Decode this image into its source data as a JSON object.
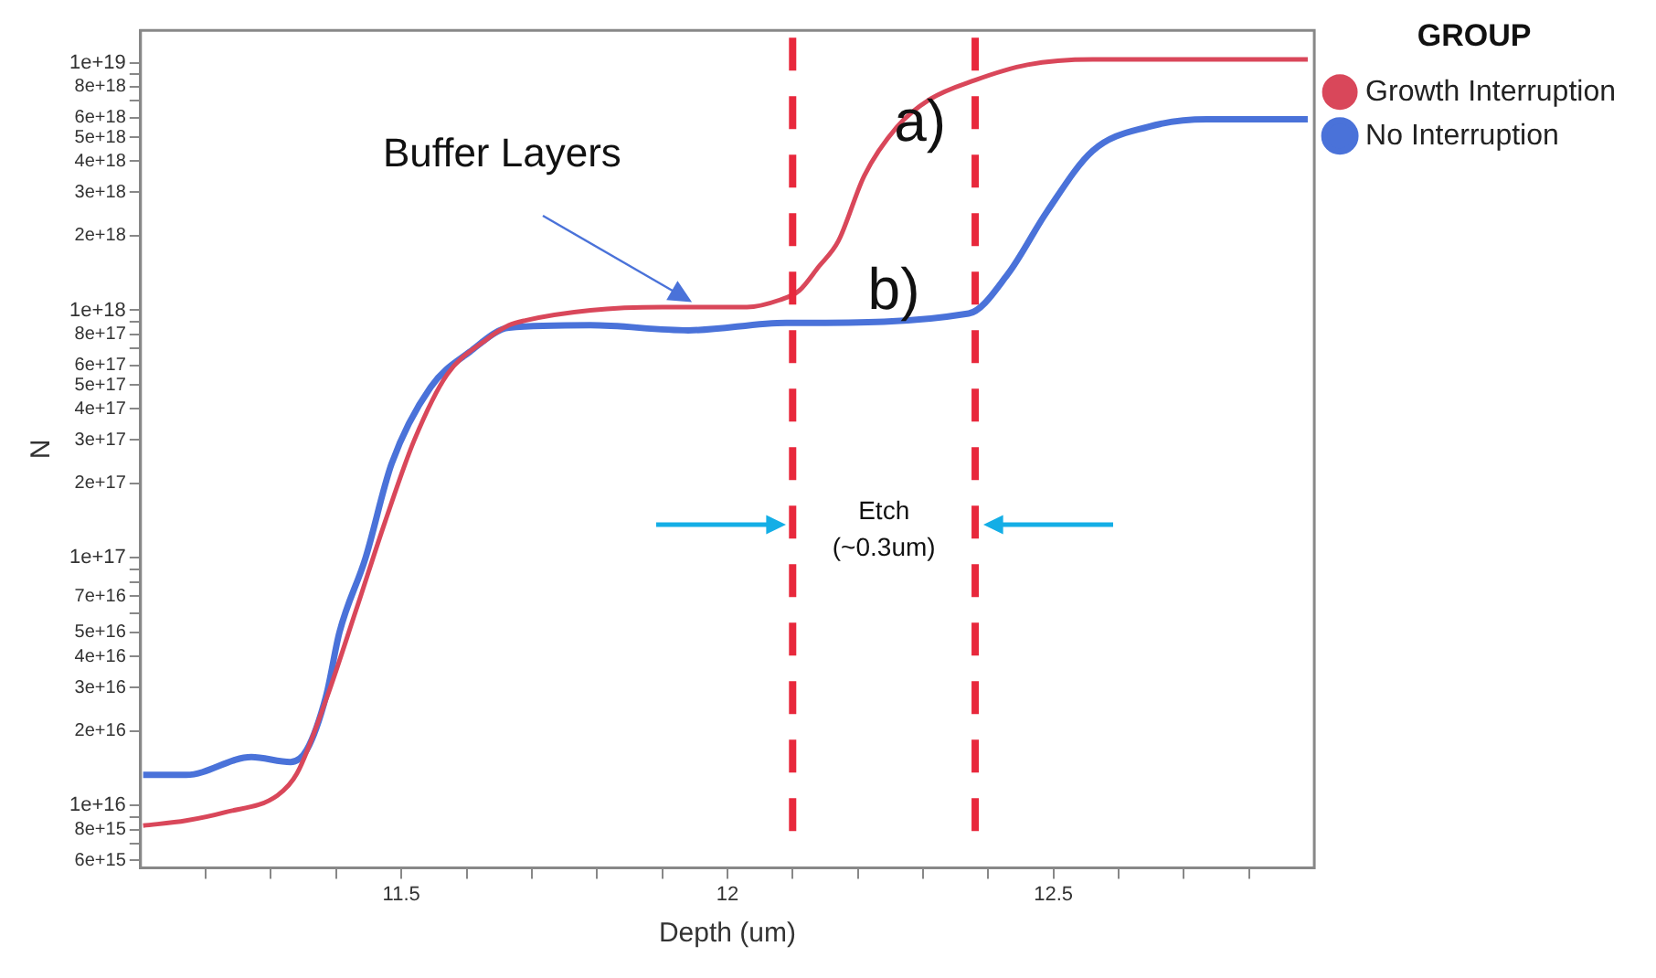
{
  "chart_data": {
    "type": "line",
    "xlabel": "Depth (um)",
    "ylabel": "N",
    "legend_title": "GROUP",
    "legend": "right",
    "log": "y",
    "grid": false,
    "marker": "none",
    "line_style": "solid",
    "xlim": [
      11.1,
      12.9
    ],
    "xticks": [
      {
        "value": 11.2,
        "label": null
      },
      {
        "value": 11.3,
        "label": null
      },
      {
        "value": 11.4,
        "label": null
      },
      11.5,
      {
        "value": 11.6,
        "label": null
      },
      {
        "value": 11.7,
        "label": null
      },
      {
        "value": 11.8,
        "label": null
      },
      {
        "value": 11.9,
        "label": null
      },
      12,
      {
        "value": 12.1,
        "label": null
      },
      {
        "value": 12.2,
        "label": null
      },
      {
        "value": 12.3,
        "label": null
      },
      {
        "value": 12.4,
        "label": null
      },
      12.5,
      {
        "value": 12.6,
        "label": null
      },
      {
        "value": 12.7,
        "label": null
      },
      {
        "value": 12.8,
        "label": null
      }
    ],
    "ylim": [
      5600000000000000.0,
      1.35e+19
    ],
    "yticks": [
      {
        "value": 6000000000000000.0,
        "label": "6e+15"
      },
      {
        "value": 7000000000000000.0,
        "label": null
      },
      {
        "value": 8000000000000000.0,
        "label": "8e+15"
      },
      {
        "value": 9000000000000000.0,
        "label": null
      },
      {
        "value": 1e+16,
        "label": "1e+16"
      },
      {
        "value": 2e+16,
        "label": "2e+16"
      },
      {
        "value": 3e+16,
        "label": "3e+16"
      },
      {
        "value": 4e+16,
        "label": "4e+16"
      },
      {
        "value": 5e+16,
        "label": "5e+16"
      },
      {
        "value": 6e+16,
        "label": null
      },
      {
        "value": 7e+16,
        "label": "7e+16"
      },
      {
        "value": 8e+16,
        "label": null
      },
      {
        "value": 9e+16,
        "label": null
      },
      {
        "value": 1e+17,
        "label": "1e+17"
      },
      {
        "value": 2e+17,
        "label": "2e+17"
      },
      {
        "value": 3e+17,
        "label": "3e+17"
      },
      {
        "value": 4e+17,
        "label": "4e+17"
      },
      {
        "value": 5e+17,
        "label": "5e+17"
      },
      {
        "value": 6e+17,
        "label": "6e+17"
      },
      {
        "value": 7e+17,
        "label": null
      },
      {
        "value": 8e+17,
        "label": "8e+17"
      },
      {
        "value": 9e+17,
        "label": null
      },
      {
        "value": 1e+18,
        "label": "1e+18"
      },
      {
        "value": 2e+18,
        "label": "2e+18"
      },
      {
        "value": 3e+18,
        "label": "3e+18"
      },
      {
        "value": 4e+18,
        "label": "4e+18"
      },
      {
        "value": 5e+18,
        "label": "5e+18"
      },
      {
        "value": 6e+18,
        "label": "6e+18"
      },
      {
        "value": 7e+18,
        "label": null
      },
      {
        "value": 8e+18,
        "label": "8e+18"
      },
      {
        "value": 9e+18,
        "label": null
      },
      {
        "value": 1e+19,
        "label": "1e+19"
      }
    ],
    "series": [
      {
        "name": "Growth Interruption",
        "color": "#d9475a",
        "x": [
          11.104,
          11.17,
          11.23,
          11.31,
          11.34,
          11.385,
          11.43,
          11.475,
          11.52,
          11.57,
          11.63,
          11.665,
          11.69,
          11.79,
          11.9,
          12.03,
          12.08,
          12.11,
          12.14,
          12.17,
          12.21,
          12.26,
          12.31,
          12.38,
          12.46,
          12.56,
          12.89
        ],
        "values": [
          8300000000000000.0,
          8700000000000000.0,
          9400000000000000.0,
          1.1e+16,
          1.35e+16,
          2.7e+16,
          6.1e+16,
          1.4e+17,
          3e+17,
          5.5e+17,
          7.6e+17,
          8.7e+17,
          9.1e+17,
          1e+18,
          1.03e+18,
          1.03e+18,
          1.1e+18,
          1.2e+18,
          1.5e+18,
          1.9e+18,
          3.5e+18,
          5.5e+18,
          7.1e+18,
          8.5e+18,
          9.8e+18,
          1.03e+19,
          1.03e+19
        ]
      },
      {
        "name": "No Interruption",
        "color": "#4a72d9",
        "x": [
          11.104,
          11.17,
          11.27,
          11.33,
          11.355,
          11.385,
          11.405,
          11.445,
          11.485,
          11.545,
          11.605,
          11.665,
          11.79,
          11.94,
          12.09,
          12.11,
          12.37,
          12.43,
          12.49,
          12.56,
          12.645,
          12.735,
          12.89
        ],
        "values": [
          1.33e+16,
          1.33e+16,
          1.57e+16,
          1.5e+16,
          1.68e+16,
          2.8e+16,
          5e+16,
          1e+17,
          2.4e+17,
          4.9e+17,
          6.8e+17,
          8.5e+17,
          8.7e+17,
          8.3e+17,
          8.9e+17,
          8.9e+17,
          9.7e+17,
          1.4e+18,
          2.5e+18,
          4.4e+18,
          5.5e+18,
          5.9e+18,
          5.9e+18
        ]
      }
    ],
    "ref_lines": [
      {
        "axis": "x",
        "value": 12.1,
        "color": "#e8283c",
        "line_style": "dashed"
      },
      {
        "axis": "x",
        "value": 12.38,
        "color": "#e8283c",
        "line_style": "dashed"
      }
    ],
    "annotations": [
      "Buffer Layers",
      {
        "text": "a)",
        "x": 12.2,
        "y": 3.5e+18
      },
      {
        "text": "b)",
        "x": 12.3,
        "y": 9.3e+17
      },
      "Etch\n(~0.3um)"
    ]
  }
}
